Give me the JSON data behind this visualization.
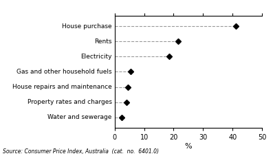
{
  "categories": [
    "House purchase",
    "Rents",
    "Electricity",
    "Gas and other household fuels",
    "House repairs and maintenance",
    "Property rates and charges",
    "Water and sewerage"
  ],
  "values": [
    41.0,
    21.5,
    18.5,
    5.5,
    4.5,
    4.0,
    2.5
  ],
  "xlim": [
    0,
    50
  ],
  "xticks": [
    0,
    10,
    20,
    30,
    40,
    50
  ],
  "xlabel": "%",
  "source_text": "Source: Consumer Price Index, Australia  (cat.  no.  6401.0)",
  "marker": "D",
  "marker_color": "#000000",
  "marker_size": 4,
  "line_color": "#999999",
  "line_style": "--",
  "line_width": 0.8,
  "label_fontsize": 6.5,
  "tick_fontsize": 7,
  "source_fontsize": 5.5
}
